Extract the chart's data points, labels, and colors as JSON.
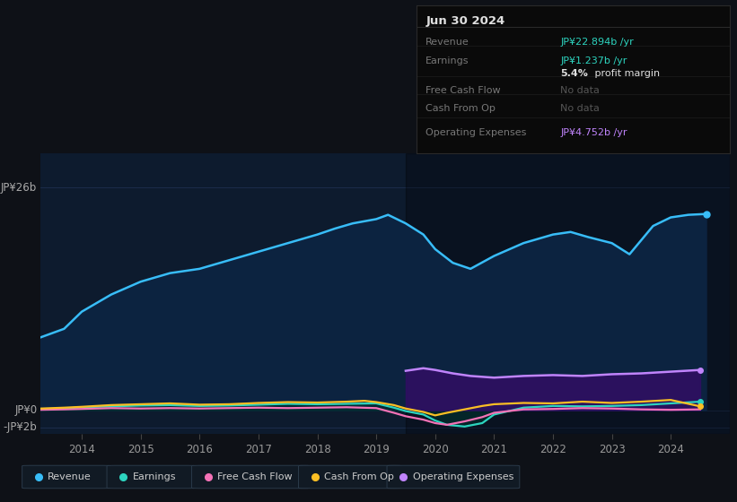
{
  "bg_color": "#0e1117",
  "chart_bg": "#0d1b2e",
  "grid_color": "#1e3050",
  "ylim": [
    -2.8,
    30
  ],
  "xlim": [
    2013.3,
    2025.0
  ],
  "xticks": [
    2014,
    2015,
    2016,
    2017,
    2018,
    2019,
    2020,
    2021,
    2022,
    2023,
    2024
  ],
  "y_zero": 0,
  "y_top": 26,
  "y_neg": -2,
  "legend": [
    {
      "label": "Revenue",
      "color": "#38bdf8"
    },
    {
      "label": "Earnings",
      "color": "#2dd4bf"
    },
    {
      "label": "Free Cash Flow",
      "color": "#f472b6"
    },
    {
      "label": "Cash From Op",
      "color": "#fbbf24"
    },
    {
      "label": "Operating Expenses",
      "color": "#c084fc"
    }
  ],
  "revenue_x": [
    2013.3,
    2013.7,
    2014.0,
    2014.5,
    2015.0,
    2015.5,
    2016.0,
    2016.5,
    2017.0,
    2017.5,
    2018.0,
    2018.3,
    2018.6,
    2019.0,
    2019.2,
    2019.5,
    2019.8,
    2020.0,
    2020.3,
    2020.6,
    2021.0,
    2021.5,
    2022.0,
    2022.3,
    2022.6,
    2023.0,
    2023.3,
    2023.7,
    2024.0,
    2024.3,
    2024.6
  ],
  "revenue_y": [
    8.5,
    9.5,
    11.5,
    13.5,
    15.0,
    16.0,
    16.5,
    17.5,
    18.5,
    19.5,
    20.5,
    21.2,
    21.8,
    22.3,
    22.8,
    21.8,
    20.5,
    18.8,
    17.2,
    16.5,
    18.0,
    19.5,
    20.5,
    20.8,
    20.2,
    19.5,
    18.2,
    21.5,
    22.5,
    22.8,
    22.9
  ],
  "earnings_x": [
    2013.3,
    2013.7,
    2014.0,
    2014.5,
    2015.0,
    2015.5,
    2016.0,
    2016.5,
    2017.0,
    2017.5,
    2018.0,
    2018.5,
    2019.0,
    2019.3,
    2019.5,
    2019.8,
    2020.0,
    2020.2,
    2020.5,
    2020.8,
    2021.0,
    2021.5,
    2022.0,
    2022.5,
    2023.0,
    2023.5,
    2024.0,
    2024.5
  ],
  "earnings_y": [
    0.15,
    0.2,
    0.35,
    0.45,
    0.55,
    0.6,
    0.5,
    0.55,
    0.65,
    0.75,
    0.7,
    0.75,
    0.8,
    0.3,
    -0.1,
    -0.5,
    -1.2,
    -1.7,
    -1.9,
    -1.5,
    -0.5,
    0.3,
    0.5,
    0.45,
    0.5,
    0.6,
    0.8,
    1.0
  ],
  "fcf_x": [
    2013.3,
    2013.7,
    2014.0,
    2014.5,
    2015.0,
    2015.5,
    2016.0,
    2016.5,
    2017.0,
    2017.5,
    2018.0,
    2018.5,
    2019.0,
    2019.3,
    2019.5,
    2019.8,
    2020.0,
    2020.2,
    2020.5,
    2020.8,
    2021.0,
    2021.5,
    2022.0,
    2022.5,
    2023.0,
    2023.5,
    2024.0,
    2024.5
  ],
  "fcf_y": [
    0.05,
    0.1,
    0.15,
    0.25,
    0.2,
    0.25,
    0.2,
    0.25,
    0.3,
    0.25,
    0.3,
    0.35,
    0.25,
    -0.3,
    -0.7,
    -1.1,
    -1.5,
    -1.7,
    -1.3,
    -0.8,
    -0.3,
    0.1,
    0.15,
    0.25,
    0.2,
    0.1,
    0.05,
    0.1
  ],
  "cfo_x": [
    2013.3,
    2013.7,
    2014.0,
    2014.5,
    2015.0,
    2015.5,
    2016.0,
    2016.5,
    2017.0,
    2017.5,
    2018.0,
    2018.5,
    2018.8,
    2019.0,
    2019.3,
    2019.5,
    2019.8,
    2020.0,
    2020.2,
    2020.5,
    2020.8,
    2021.0,
    2021.5,
    2022.0,
    2022.5,
    2023.0,
    2023.5,
    2024.0,
    2024.5
  ],
  "cfo_y": [
    0.2,
    0.3,
    0.4,
    0.6,
    0.7,
    0.8,
    0.65,
    0.7,
    0.85,
    0.95,
    0.9,
    1.0,
    1.1,
    0.95,
    0.6,
    0.2,
    -0.2,
    -0.6,
    -0.3,
    0.1,
    0.5,
    0.7,
    0.85,
    0.8,
    1.0,
    0.85,
    1.0,
    1.2,
    0.45
  ],
  "opex_x": [
    2019.5,
    2019.8,
    2020.0,
    2020.3,
    2020.6,
    2021.0,
    2021.5,
    2022.0,
    2022.5,
    2023.0,
    2023.5,
    2024.0,
    2024.5
  ],
  "opex_y": [
    4.6,
    4.9,
    4.7,
    4.3,
    4.0,
    3.8,
    4.0,
    4.1,
    4.0,
    4.2,
    4.3,
    4.5,
    4.7
  ],
  "opex_color": "#c084fc",
  "opex_fill": "#2d1060",
  "rev_color": "#38bdf8",
  "rev_fill": "#0c2340",
  "earn_color": "#2dd4bf",
  "earn_fill": "#022e2e",
  "fcf_color": "#f472b6",
  "cfo_color": "#fbbf24",
  "tooltip_bg": "#0a0a0a",
  "tooltip_border": "#2a2a2a",
  "date_label": "Jun 30 2024",
  "info_rows": [
    {
      "label": "Revenue",
      "value": "JP¥22.894b /yr",
      "vcolor": "#2dd4bf",
      "dim": false
    },
    {
      "label": "Earnings",
      "value": "JP¥1.237b /yr",
      "vcolor": "#2dd4bf",
      "dim": false
    },
    {
      "label": "",
      "value": "5.4% profit margin",
      "vcolor": "#e0e0e0",
      "dim": false,
      "bold5": true
    },
    {
      "label": "Free Cash Flow",
      "value": "No data",
      "vcolor": "#555555",
      "dim": true
    },
    {
      "label": "Cash From Op",
      "value": "No data",
      "vcolor": "#555555",
      "dim": true
    },
    {
      "label": "Operating Expenses",
      "value": "JP¥4.752b /yr",
      "vcolor": "#c084fc",
      "dim": false
    }
  ]
}
